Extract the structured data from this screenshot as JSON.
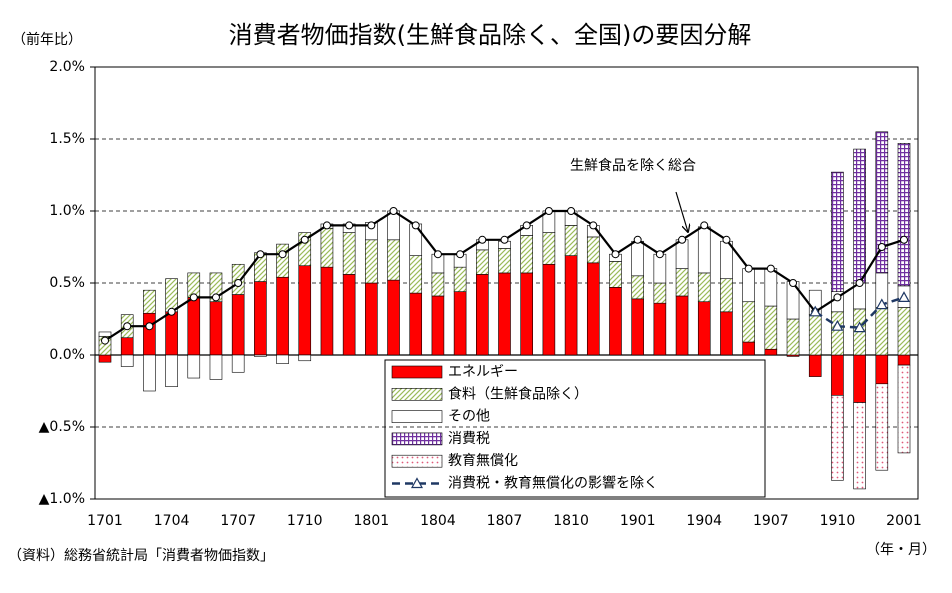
{
  "chart_data": {
    "type": "bar",
    "title": "消費者物価指数(生鮮食品除く、全国)の要因分解",
    "y_label": "（前年比）",
    "x_label": "（年・月）",
    "source": "（資料）総務省統計局「消費者物価指数」",
    "categories": [
      "1701",
      null,
      null,
      "1704",
      null,
      null,
      "1707",
      null,
      null,
      "1710",
      null,
      null,
      "1801",
      null,
      null,
      "1804",
      null,
      null,
      "1807",
      null,
      null,
      "1810",
      null,
      null,
      "1901",
      null,
      null,
      "1904",
      null,
      null,
      "1907",
      null,
      null,
      "1910",
      null,
      null,
      "2001"
    ],
    "ylim": [
      -1.0,
      2.0
    ],
    "yticks": [
      {
        "value": -1.0,
        "label": "▲1.0%"
      },
      {
        "value": -0.5,
        "label": "▲0.5%"
      },
      {
        "value": 0,
        "label": "0.0%"
      },
      {
        "value": 0.5,
        "label": "0.5%"
      },
      {
        "value": 1.0,
        "label": "1.0%"
      },
      {
        "value": 1.5,
        "label": "1.5%"
      },
      {
        "value": 2.0,
        "label": "2.0%"
      }
    ],
    "grid": true,
    "stacked": true,
    "series": [
      {
        "name": "エネルギー",
        "type": "bar",
        "fill": "solid",
        "color": "#ff0000",
        "values": [
          -0.05,
          0.12,
          0.29,
          0.3,
          0.4,
          0.37,
          0.42,
          0.51,
          0.54,
          0.62,
          0.61,
          0.56,
          0.5,
          0.52,
          0.43,
          0.41,
          0.44,
          0.56,
          0.57,
          0.57,
          0.63,
          0.69,
          0.64,
          0.47,
          0.39,
          0.36,
          0.41,
          0.37,
          0.3,
          0.09,
          0.04,
          -0.01,
          -0.15,
          -0.28,
          -0.33,
          -0.2,
          -0.07
        ]
      },
      {
        "name": "食料（生鮮食品除く）",
        "type": "bar",
        "fill": "hatch",
        "color": "#9bbb59",
        "values": [
          0.13,
          0.16,
          0.16,
          0.23,
          0.17,
          0.2,
          0.21,
          0.2,
          0.23,
          0.23,
          0.27,
          0.29,
          0.3,
          0.28,
          0.26,
          0.16,
          0.17,
          0.17,
          0.17,
          0.26,
          0.22,
          0.21,
          0.18,
          0.18,
          0.16,
          0.14,
          0.19,
          0.2,
          0.23,
          0.28,
          0.3,
          0.25,
          0.28,
          0.3,
          0.32,
          0.33,
          0.33
        ]
      },
      {
        "name": "その他",
        "type": "bar",
        "fill": "solid",
        "color": "#ffffff",
        "values": [
          0.03,
          -0.08,
          -0.25,
          -0.22,
          -0.16,
          -0.17,
          -0.12,
          -0.01,
          -0.06,
          -0.04,
          0.03,
          0.06,
          0.12,
          0.2,
          0.22,
          0.13,
          0.09,
          0.07,
          0.05,
          0.07,
          0.15,
          0.1,
          0.08,
          0.05,
          0.24,
          0.2,
          0.2,
          0.32,
          0.26,
          0.23,
          0.26,
          0.26,
          0.17,
          0.14,
          0.18,
          0.24,
          0.15
        ]
      },
      {
        "name": "消費税",
        "type": "bar",
        "fill": "grid",
        "color": "#7030a0",
        "values": [
          null,
          null,
          null,
          null,
          null,
          null,
          null,
          null,
          null,
          null,
          null,
          null,
          null,
          null,
          null,
          null,
          null,
          null,
          null,
          null,
          null,
          null,
          null,
          null,
          null,
          null,
          null,
          null,
          null,
          null,
          null,
          null,
          null,
          0.83,
          0.93,
          0.98,
          0.99
        ]
      },
      {
        "name": "教育無償化",
        "type": "bar",
        "fill": "dots",
        "color": "#e05a7a",
        "values": [
          null,
          null,
          null,
          null,
          null,
          null,
          null,
          null,
          null,
          null,
          null,
          null,
          null,
          null,
          null,
          null,
          null,
          null,
          null,
          null,
          null,
          null,
          null,
          null,
          null,
          null,
          null,
          null,
          null,
          null,
          null,
          null,
          null,
          -0.59,
          -0.6,
          -0.6,
          -0.61
        ]
      },
      {
        "name": "消費税・教育無償化の影響を除く",
        "type": "line",
        "dashed": true,
        "marker": "triangle",
        "color": "#1f3864",
        "values": [
          null,
          null,
          null,
          null,
          null,
          null,
          null,
          null,
          null,
          null,
          null,
          null,
          null,
          null,
          null,
          null,
          null,
          null,
          null,
          null,
          null,
          null,
          null,
          null,
          null,
          null,
          null,
          null,
          null,
          null,
          null,
          null,
          0.3,
          0.2,
          0.19,
          0.35,
          0.4
        ]
      }
    ],
    "total_line": {
      "name": "生鮮食品を除く総合",
      "color": "#000000",
      "marker": "circle",
      "values": [
        0.1,
        0.2,
        0.2,
        0.3,
        0.4,
        0.4,
        0.5,
        0.7,
        0.7,
        0.8,
        0.9,
        0.9,
        0.9,
        1.0,
        0.9,
        0.7,
        0.7,
        0.8,
        0.8,
        0.9,
        1.0,
        1.0,
        0.9,
        0.7,
        0.8,
        0.7,
        0.8,
        0.9,
        0.8,
        0.6,
        0.6,
        0.5,
        0.3,
        0.4,
        0.5,
        0.75,
        0.8
      ]
    }
  }
}
